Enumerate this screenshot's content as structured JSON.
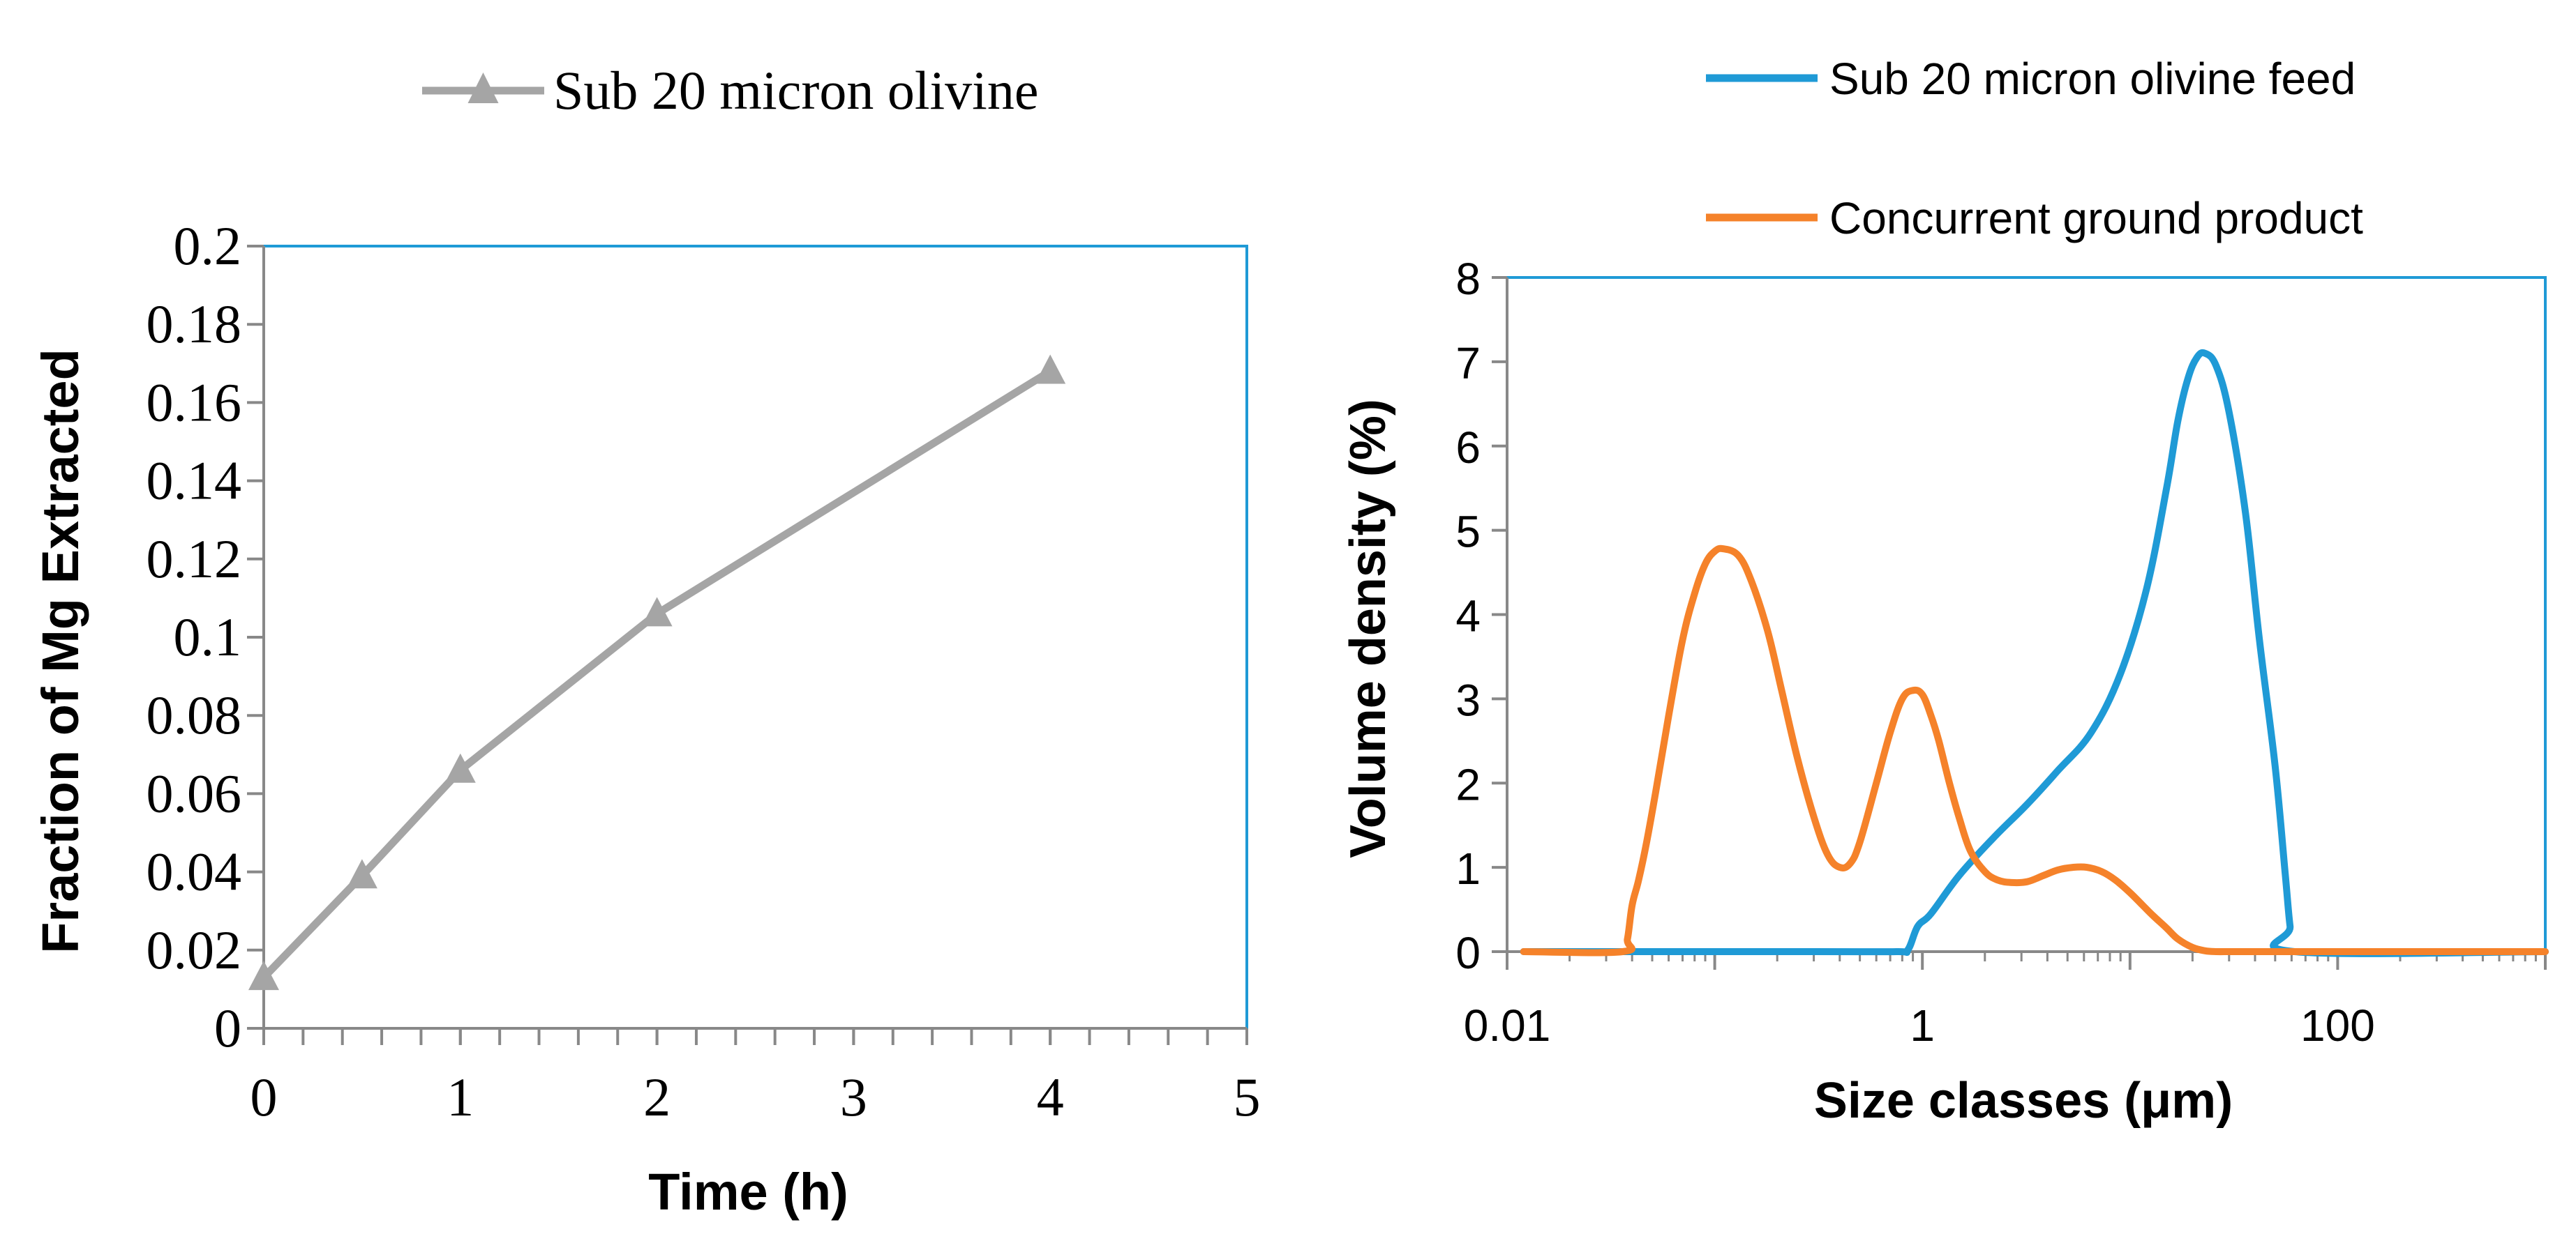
{
  "chart_data": [
    {
      "type": "line",
      "title": "",
      "xlabel": "Time (h)",
      "ylabel": "Fraction of Mg Extracted",
      "xlim": [
        0,
        5
      ],
      "ylim": [
        0,
        0.2
      ],
      "x_ticks": [
        0,
        1,
        2,
        3,
        4,
        5
      ],
      "x_tick_labels": [
        "0",
        "1",
        "2",
        "3",
        "4",
        "5"
      ],
      "x_minor_step": 0.2,
      "y_ticks": [
        0,
        0.02,
        0.04,
        0.06,
        0.08,
        0.1,
        0.12,
        0.14,
        0.16,
        0.18,
        0.2
      ],
      "y_tick_labels": [
        "0",
        "0.02",
        "0.04",
        "0.06",
        "0.08",
        "0.1",
        "0.12",
        "0.14",
        "0.16",
        "0.18",
        "0.2"
      ],
      "grid": false,
      "legend_position": "top",
      "series": [
        {
          "name": "Sub 20 micron olivine",
          "color": "#a5a5a5",
          "marker": "triangle",
          "x": [
            0,
            0.5,
            1,
            2,
            4
          ],
          "y": [
            0.013,
            0.039,
            0.066,
            0.106,
            0.168
          ]
        }
      ]
    },
    {
      "type": "line",
      "title": "",
      "xlabel": "Size classes (μm)",
      "ylabel": "Volume density (%)",
      "x_scale": "log",
      "xlim": [
        0.01,
        1000
      ],
      "ylim": [
        0,
        8
      ],
      "x_ticks": [
        0.01,
        1,
        100
      ],
      "x_tick_labels": [
        "0.01",
        "1",
        "100"
      ],
      "y_ticks": [
        0,
        1,
        2,
        3,
        4,
        5,
        6,
        7,
        8
      ],
      "y_tick_labels": [
        "0",
        "1",
        "2",
        "3",
        "4",
        "5",
        "6",
        "7",
        "8"
      ],
      "grid": false,
      "legend_position": "top-right",
      "series": [
        {
          "name": "Sub 20 micron olivine feed",
          "color": "#1f9ad6",
          "x": [
            0.012,
            0.3,
            0.75,
            0.85,
            0.95,
            1.1,
            1.5,
            2.2,
            3.2,
            4.5,
            6.5,
            9,
            12,
            15,
            17,
            19,
            21,
            23,
            26,
            30,
            36,
            42,
            50,
            56,
            59,
            62,
            1000
          ],
          "y": [
            0,
            0,
            0,
            0.02,
            0.3,
            0.45,
            0.9,
            1.35,
            1.75,
            2.15,
            2.6,
            3.3,
            4.3,
            5.5,
            6.3,
            6.8,
            7.05,
            7.1,
            6.95,
            6.4,
            5.2,
            3.7,
            2.2,
            0.9,
            0.3,
            0,
            0
          ],
          "smooth": true
        },
        {
          "name": "Concurrent ground product",
          "color": "#f5822a",
          "x": [
            0.012,
            0.036,
            0.038,
            0.04,
            0.043,
            0.047,
            0.052,
            0.06,
            0.07,
            0.08,
            0.09,
            0.1,
            0.11,
            0.13,
            0.15,
            0.18,
            0.21,
            0.25,
            0.3,
            0.35,
            0.4,
            0.45,
            0.5,
            0.6,
            0.7,
            0.8,
            0.9,
            1.0,
            1.1,
            1.2,
            1.35,
            1.5,
            1.7,
            2.0,
            2.3,
            2.7,
            3.2,
            3.8,
            4.5,
            5.3,
            6.2,
            7.3,
            8.5,
            10,
            11.5,
            13,
            15,
            17,
            20,
            23,
            26,
            30,
            35,
            1000
          ],
          "y": [
            0,
            0,
            0.15,
            0.55,
            0.85,
            1.3,
            1.9,
            2.8,
            3.7,
            4.25,
            4.6,
            4.75,
            4.78,
            4.7,
            4.4,
            3.8,
            3.1,
            2.3,
            1.6,
            1.15,
            1.0,
            1.05,
            1.3,
            2.0,
            2.6,
            3.0,
            3.1,
            3.05,
            2.8,
            2.5,
            2.0,
            1.6,
            1.2,
            0.95,
            0.85,
            0.82,
            0.83,
            0.9,
            0.97,
            1.0,
            1.0,
            0.95,
            0.85,
            0.7,
            0.55,
            0.42,
            0.28,
            0.15,
            0.05,
            0.01,
            0,
            0,
            0,
            0
          ],
          "smooth": true
        }
      ]
    }
  ]
}
